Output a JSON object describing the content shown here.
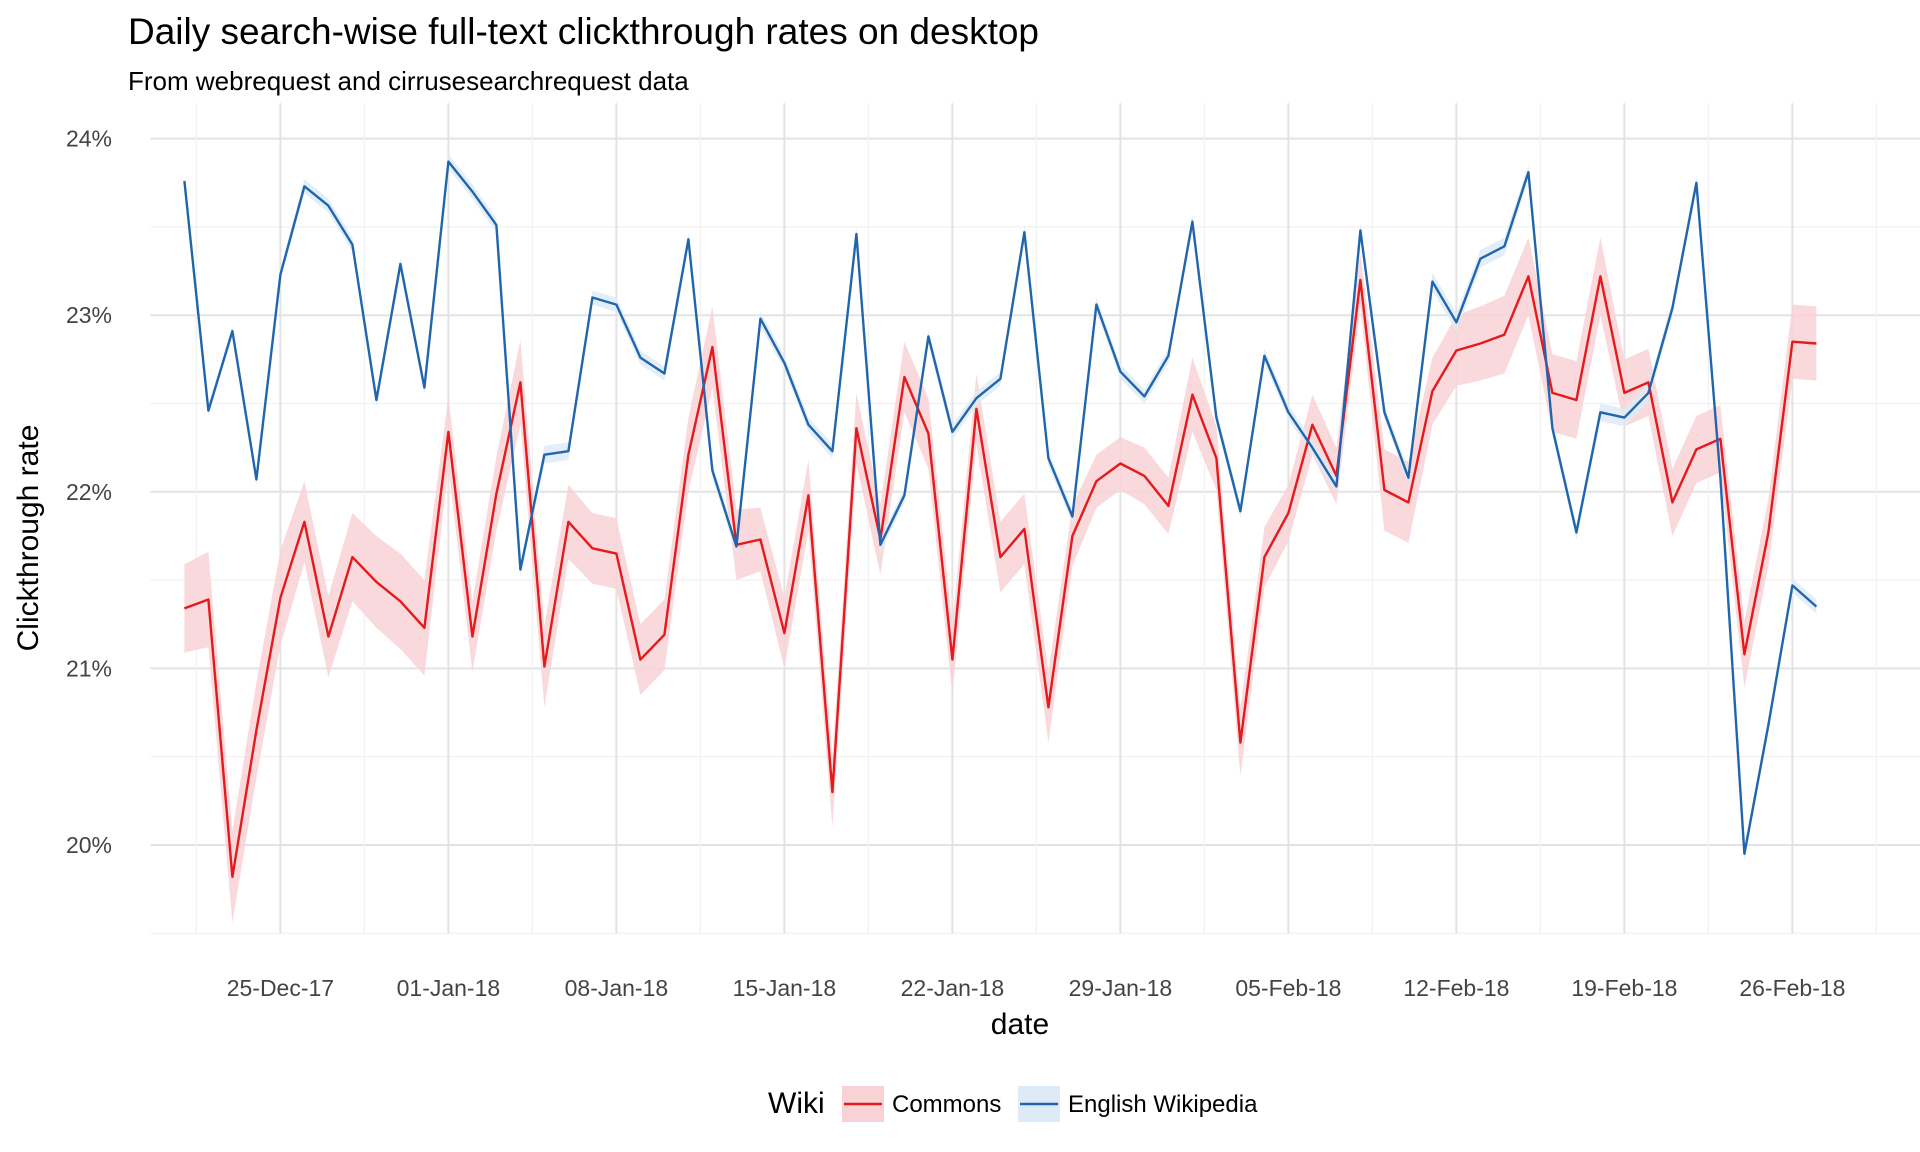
{
  "chart_data": {
    "type": "line",
    "title": "Daily search-wise full-text clickthrough rates on desktop",
    "subtitle": "From webrequest and cirrusesearchrequest data",
    "xlabel": "date",
    "ylabel": "Clickthrough rate",
    "x_start": "2017-12-20",
    "x_ticks": [
      "25-Dec-17",
      "01-Jan-18",
      "08-Jan-18",
      "15-Jan-18",
      "22-Jan-18",
      "29-Jan-18",
      "05-Feb-18",
      "12-Feb-18",
      "19-Feb-18",
      "26-Feb-18"
    ],
    "y_ticks": [
      "20%",
      "21%",
      "22%",
      "23%",
      "24%"
    ],
    "ylim": [
      19.5,
      24.2
    ],
    "grid": true,
    "legend": {
      "position": "bottom",
      "title": "Wiki",
      "entries": [
        "Commons",
        "English Wikipedia"
      ]
    },
    "series": [
      {
        "name": "Commons",
        "color": "#e41a1c",
        "ribbon_color": "#f9d2d6",
        "values": [
          21.34,
          21.39,
          19.82,
          20.65,
          21.4,
          21.83,
          21.18,
          21.63,
          21.49,
          21.38,
          21.23,
          22.34,
          21.18,
          21.99,
          22.62,
          21.01,
          21.83,
          21.68,
          21.65,
          21.05,
          21.19,
          22.21,
          22.82,
          21.7,
          21.73,
          21.2,
          21.98,
          20.3,
          22.36,
          21.73,
          22.65,
          22.33,
          21.05,
          22.47,
          21.63,
          21.79,
          20.78,
          21.75,
          22.06,
          22.16,
          22.09,
          21.92,
          22.55,
          22.19,
          20.58,
          21.63,
          21.88,
          22.38,
          22.09,
          23.2,
          22.01,
          21.94,
          22.57,
          22.8,
          22.84,
          22.89,
          23.22,
          22.56,
          22.52,
          23.22,
          22.56,
          22.62,
          21.94,
          22.24,
          22.3,
          21.08,
          21.77,
          22.85,
          22.84
        ],
        "ribbon_halfwidth": [
          0.25,
          0.27,
          0.26,
          0.27,
          0.27,
          0.23,
          0.23,
          0.25,
          0.26,
          0.27,
          0.27,
          0.2,
          0.2,
          0.21,
          0.24,
          0.23,
          0.21,
          0.2,
          0.2,
          0.2,
          0.2,
          0.21,
          0.23,
          0.2,
          0.18,
          0.2,
          0.2,
          0.2,
          0.2,
          0.2,
          0.2,
          0.2,
          0.2,
          0.2,
          0.2,
          0.2,
          0.2,
          0.17,
          0.15,
          0.15,
          0.16,
          0.16,
          0.21,
          0.18,
          0.19,
          0.17,
          0.16,
          0.17,
          0.16,
          0.15,
          0.23,
          0.23,
          0.19,
          0.2,
          0.21,
          0.22,
          0.22,
          0.22,
          0.22,
          0.22,
          0.19,
          0.19,
          0.19,
          0.19,
          0.19,
          0.19,
          0.19,
          0.21,
          0.21
        ]
      },
      {
        "name": "English Wikipedia",
        "color": "#2166ac",
        "ribbon_color": "#deebf7",
        "values": [
          23.76,
          22.46,
          22.91,
          22.07,
          23.23,
          23.73,
          23.62,
          23.4,
          22.52,
          23.29,
          22.59,
          23.87,
          23.7,
          23.51,
          21.56,
          22.21,
          22.23,
          23.1,
          23.06,
          22.76,
          22.67,
          23.43,
          22.12,
          21.69,
          22.98,
          22.73,
          22.38,
          22.23,
          23.46,
          21.7,
          21.98,
          22.88,
          22.34,
          22.53,
          22.64,
          23.47,
          22.19,
          21.86,
          23.06,
          22.68,
          22.54,
          22.77,
          23.53,
          22.42,
          21.89,
          22.77,
          22.45,
          22.25,
          22.03,
          23.48,
          22.45,
          22.08,
          23.19,
          22.96,
          23.32,
          23.39,
          23.81,
          22.36,
          21.77,
          22.45,
          22.42,
          22.56,
          23.04,
          23.75,
          22.08,
          19.95,
          20.68,
          21.47,
          21.35
        ],
        "ribbon_halfwidth": [
          0.03,
          0.03,
          0.03,
          0.03,
          0.03,
          0.04,
          0.04,
          0.04,
          0.04,
          0.04,
          0.04,
          0.04,
          0.04,
          0.04,
          0.04,
          0.05,
          0.05,
          0.04,
          0.04,
          0.04,
          0.04,
          0.04,
          0.04,
          0.04,
          0.04,
          0.04,
          0.04,
          0.04,
          0.04,
          0.04,
          0.04,
          0.04,
          0.04,
          0.04,
          0.04,
          0.04,
          0.04,
          0.04,
          0.04,
          0.04,
          0.04,
          0.04,
          0.04,
          0.04,
          0.04,
          0.04,
          0.04,
          0.04,
          0.04,
          0.04,
          0.04,
          0.04,
          0.05,
          0.05,
          0.05,
          0.05,
          0.04,
          0.04,
          0.04,
          0.05,
          0.05,
          0.05,
          0.04,
          0.04,
          0.04,
          0.04,
          0.04,
          0.04,
          0.04
        ]
      }
    ]
  }
}
